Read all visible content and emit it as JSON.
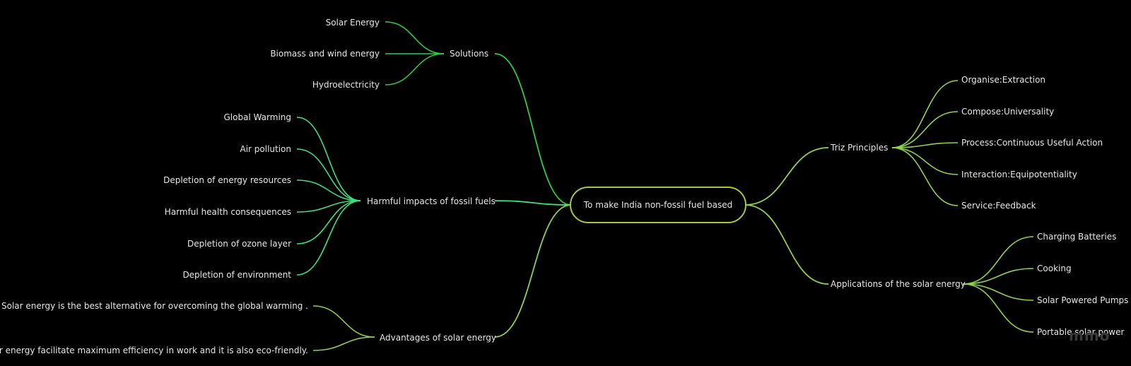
{
  "center": "To make India non-fossil fuel based",
  "colors": {
    "left_branch": "#2ecc40",
    "harm_branch": "#3de07a",
    "right_branch": "#8fd14f",
    "center_border": "#a7c83a"
  },
  "branches": {
    "solutions": {
      "label": "Solutions",
      "children": [
        "Solar Energy",
        "Biomass and wind energy",
        "Hydroelectricity"
      ]
    },
    "harmful": {
      "label": "Harmful impacts of fossil fuels",
      "children": [
        "Global Warming",
        "Air pollution",
        "Depletion of energy resources",
        "Harmful health consequences",
        "Depletion of ozone layer",
        "Depletion of environment"
      ]
    },
    "advantages": {
      "label": "Advantages of solar energy",
      "children": [
        "Solar energy is the best alternative for overcoming the global warming .",
        "Solar energy facilitate maximum efficiency in work and it is also eco-friendly."
      ]
    },
    "triz": {
      "label": "Triz Principles",
      "children": [
        "Organise:Extraction",
        "Compose:Universality",
        "Process:Continuous Useful Action",
        "Interaction:Equipotentiality",
        "Service:Feedback"
      ]
    },
    "applications": {
      "label": "Applications of the solar energy",
      "children": [
        "Charging Batteries",
        "Cooking",
        "Solar Powered Pumps",
        "Portable solar power"
      ]
    }
  },
  "watermark": "mmo"
}
